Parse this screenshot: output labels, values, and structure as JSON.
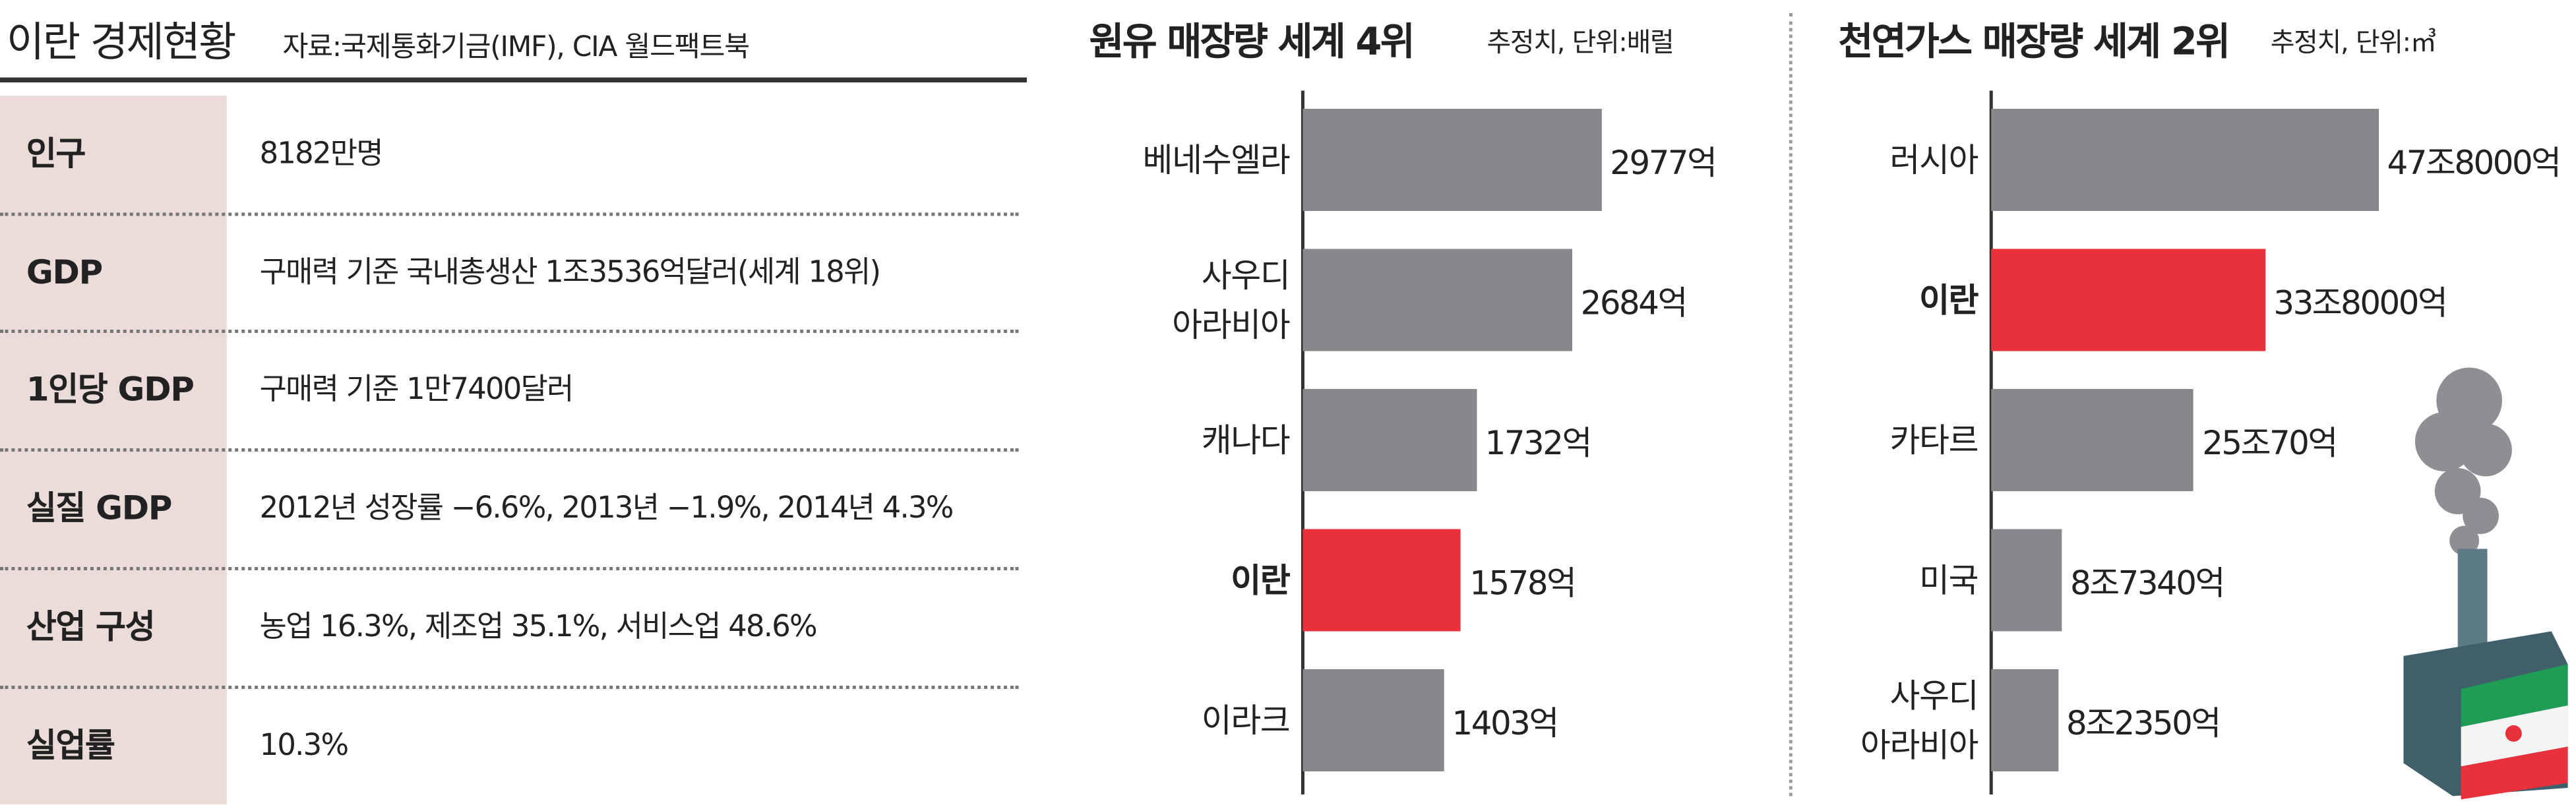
{
  "header": {
    "title": "이란 경제현황",
    "source": "자료:국제통화기금(IMF), CIA 월드팩트북"
  },
  "table": {
    "rows": [
      [
        "인구",
        "8182만명"
      ],
      [
        "GDP",
        "구매력 기준 국내총생산 1조3536억달러(세계 18위)"
      ],
      [
        "1인당 GDP",
        "구매력 기준 1만7400달러"
      ],
      [
        "실질 GDP",
        "2012년 성장률 −6.6%, 2013년 −1.9%, 2014년 4.3%"
      ],
      [
        "산업 구성",
        "농업 16.3%, 제조업 35.1%, 서비스업 48.6%"
      ],
      [
        "실업률",
        "10.3%"
      ]
    ]
  },
  "chart_data": [
    {
      "type": "bar",
      "orientation": "horizontal",
      "title": "원유 매장량 세계 4위",
      "subtitle": "추정치, 단위:배럴",
      "categories": [
        "베네수엘라",
        "사우디\n아라비아",
        "캐나다",
        "이란",
        "이라크"
      ],
      "values": [
        2977,
        2684,
        1732,
        1578,
        1403
      ],
      "value_labels": [
        "2977억",
        "2684억",
        "1732억",
        "1578억",
        "1403억"
      ],
      "color": "#87888b",
      "colors": [
        "#87888b",
        "#87888b",
        "#87888b",
        "#e8313a",
        "#87888b"
      ]
    },
    {
      "type": "bar",
      "orientation": "horizontal",
      "title": "천연가스 매장량 세계 2위",
      "subtitle": "추정치, 단위:㎥",
      "categories": [
        "러시아",
        "이란",
        "카타르",
        "미국",
        "사우디\n아라비아"
      ],
      "values": [
        478000,
        338000,
        250070,
        87340,
        82350
      ],
      "value_labels": [
        "47조8000억",
        "33조8000억",
        "25조70억",
        "8조7340억",
        "8조2350억"
      ],
      "color": "#87888b",
      "colors": [
        "#87888b",
        "#e8313a",
        "#87888b",
        "#87888b",
        "#87888b"
      ]
    }
  ]
}
